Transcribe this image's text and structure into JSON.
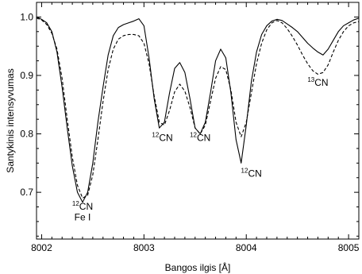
{
  "chart_data": {
    "type": "line",
    "xlabel": "Bangos ilgis [Å]",
    "ylabel": "Santykinis intensyvumas",
    "xlim": [
      8001.95,
      8005.1
    ],
    "ylim": [
      0.62,
      1.025
    ],
    "xticks": [
      8002,
      8003,
      8004,
      8005
    ],
    "xtick_labels": [
      "8002",
      "8003",
      "8004",
      "8005"
    ],
    "yticks": [
      0.7,
      0.8,
      0.9,
      1.0
    ],
    "ytick_labels": [
      "0.7",
      "0.8",
      "0.9",
      "1.0"
    ],
    "grid": false,
    "series": [
      {
        "style": "solid",
        "x": [
          8001.95,
          8002.0,
          8002.05,
          8002.1,
          8002.15,
          8002.2,
          8002.25,
          8002.3,
          8002.35,
          8002.4,
          8002.45,
          8002.5,
          8002.55,
          8002.6,
          8002.65,
          8002.7,
          8002.75,
          8002.8,
          8002.85,
          8002.9,
          8002.95,
          8003.0,
          8003.05,
          8003.1,
          8003.15,
          8003.2,
          8003.25,
          8003.3,
          8003.35,
          8003.4,
          8003.45,
          8003.5,
          8003.55,
          8003.6,
          8003.65,
          8003.7,
          8003.75,
          8003.8,
          8003.85,
          8003.9,
          8003.95,
          8004.0,
          8004.05,
          8004.1,
          8004.15,
          8004.2,
          8004.25,
          8004.3,
          8004.35,
          8004.4,
          8004.45,
          8004.5,
          8004.55,
          8004.6,
          8004.65,
          8004.7,
          8004.75,
          8004.8,
          8004.85,
          8004.9,
          8004.95,
          8005.0,
          8005.05,
          8005.1
        ],
        "y": [
          1.0,
          0.996,
          0.99,
          0.975,
          0.94,
          0.88,
          0.81,
          0.745,
          0.7,
          0.683,
          0.7,
          0.75,
          0.82,
          0.88,
          0.935,
          0.968,
          0.982,
          0.987,
          0.99,
          0.993,
          0.997,
          0.985,
          0.93,
          0.86,
          0.81,
          0.82,
          0.87,
          0.912,
          0.922,
          0.905,
          0.86,
          0.81,
          0.8,
          0.82,
          0.87,
          0.925,
          0.945,
          0.93,
          0.87,
          0.79,
          0.75,
          0.815,
          0.89,
          0.94,
          0.97,
          0.985,
          0.993,
          0.996,
          0.994,
          0.988,
          0.982,
          0.975,
          0.965,
          0.955,
          0.947,
          0.94,
          0.935,
          0.945,
          0.96,
          0.975,
          0.985,
          0.99,
          0.995,
          0.998
        ]
      },
      {
        "style": "dashed",
        "x": [
          8001.95,
          8002.0,
          8002.05,
          8002.1,
          8002.15,
          8002.2,
          8002.25,
          8002.3,
          8002.35,
          8002.4,
          8002.45,
          8002.5,
          8002.55,
          8002.6,
          8002.65,
          8002.7,
          8002.75,
          8002.8,
          8002.85,
          8002.9,
          8002.95,
          8003.0,
          8003.05,
          8003.1,
          8003.15,
          8003.2,
          8003.25,
          8003.3,
          8003.35,
          8003.4,
          8003.45,
          8003.5,
          8003.55,
          8003.6,
          8003.65,
          8003.7,
          8003.75,
          8003.8,
          8003.85,
          8003.9,
          8003.95,
          8004.0,
          8004.05,
          8004.1,
          8004.15,
          8004.2,
          8004.25,
          8004.3,
          8004.35,
          8004.4,
          8004.45,
          8004.5,
          8004.55,
          8004.6,
          8004.65,
          8004.7,
          8004.75,
          8004.8,
          8004.85,
          8004.9,
          8004.95,
          8005.0,
          8005.05,
          8005.1
        ],
        "y": [
          0.998,
          0.995,
          0.987,
          0.972,
          0.945,
          0.895,
          0.825,
          0.76,
          0.712,
          0.69,
          0.695,
          0.73,
          0.79,
          0.855,
          0.91,
          0.945,
          0.962,
          0.968,
          0.97,
          0.97,
          0.968,
          0.955,
          0.92,
          0.865,
          0.82,
          0.815,
          0.84,
          0.872,
          0.885,
          0.873,
          0.845,
          0.81,
          0.8,
          0.815,
          0.855,
          0.895,
          0.915,
          0.91,
          0.875,
          0.82,
          0.795,
          0.82,
          0.87,
          0.92,
          0.955,
          0.978,
          0.99,
          0.994,
          0.99,
          0.98,
          0.967,
          0.952,
          0.935,
          0.92,
          0.908,
          0.902,
          0.905,
          0.918,
          0.94,
          0.96,
          0.975,
          0.985,
          0.99,
          0.992
        ]
      }
    ],
    "annotations": [
      {
        "sup": "12",
        "text": "CN",
        "x": 8002.4,
        "y": 0.67
      },
      {
        "text": "Fe I",
        "x": 8002.4,
        "y": 0.652
      },
      {
        "sup": "12",
        "text": "CN",
        "x": 8003.18,
        "y": 0.788
      },
      {
        "sup": "12",
        "text": "CN",
        "x": 8003.55,
        "y": 0.788
      },
      {
        "sup": "12",
        "text": "CN",
        "x": 8004.05,
        "y": 0.727
      },
      {
        "sup": "13",
        "text": "CN",
        "x": 8004.7,
        "y": 0.882
      }
    ]
  }
}
